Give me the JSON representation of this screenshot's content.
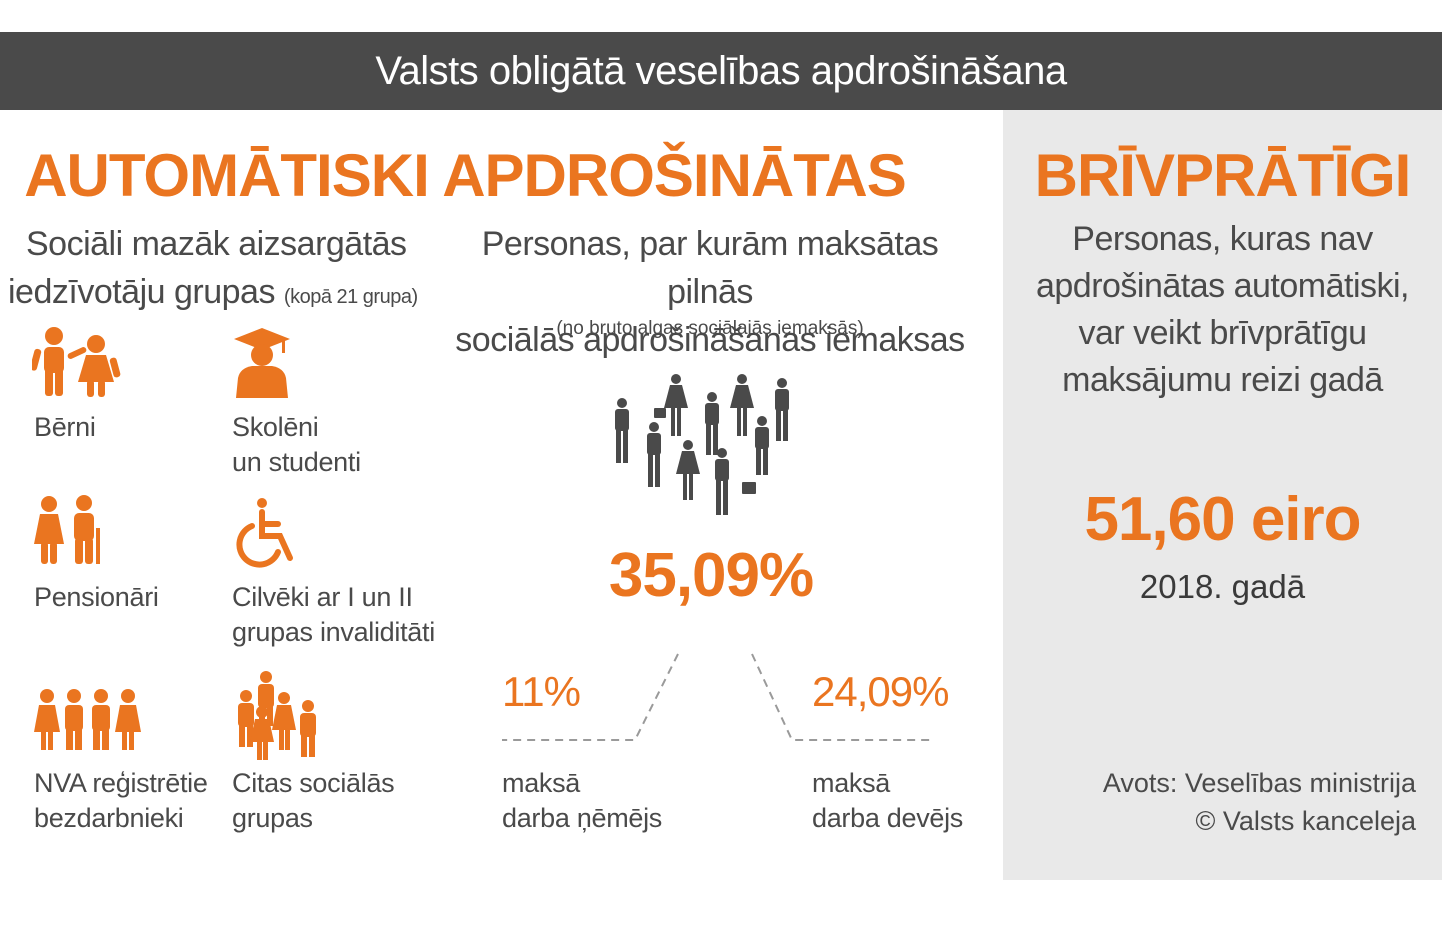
{
  "header": {
    "title": "Valsts obligātā veselības apdrošināšana"
  },
  "left": {
    "title": "AUTOMĀTISKI APDROŠINĀTAS",
    "groups_heading_line1": "Sociāli mazāk aizsargātās",
    "groups_heading_line2": "iedzīvotāju grupas",
    "groups_heading_note": "(kopā 21 grupa)",
    "groups": [
      {
        "icon": "children-icon",
        "line1": "Bērni",
        "line2": ""
      },
      {
        "icon": "graduate-icon",
        "line1": "Skolēni",
        "line2": "un studenti"
      },
      {
        "icon": "pensioners-icon",
        "line1": "Pensionāri",
        "line2": ""
      },
      {
        "icon": "wheelchair-icon",
        "line1": "Cilvēki ar I un II",
        "line2": "grupas invaliditāti"
      },
      {
        "icon": "unemployed-icon",
        "line1": "NVA reģistrētie",
        "line2": "bezdarbnieki"
      },
      {
        "icon": "social-groups-icon",
        "line1": "Citas sociālās",
        "line2": "grupas"
      }
    ],
    "persons_heading_line1": "Personas, par kurām maksātas pilnās",
    "persons_heading_line2": "sociālās apdrošināšanas iemaksas",
    "persons_note": "(no bruto algas sociālajās iemaksās)",
    "total_pct": "35,09%",
    "employee": {
      "pct": "11%",
      "line1": "maksā",
      "line2": "darba ņēmējs"
    },
    "employer": {
      "pct": "24,09%",
      "line1": "maksā",
      "line2": "darba devējs"
    }
  },
  "right": {
    "title": "BRĪVPRĀTĪGI",
    "text_lines": [
      "Personas, kuras nav",
      "apdrošinātas automātiski,",
      "var veikt brīvprātīgu",
      "maksājumu reizi gadā"
    ],
    "amount": "51,60 eiro",
    "year": "2018. gadā",
    "source_line1": "Avots: Veselības ministrija",
    "source_line2": "© Valsts kanceleja"
  },
  "colors": {
    "accent": "#ea7520",
    "header_bg": "#4a4a4a",
    "panel_bg": "#e9e9e9",
    "crowd": "#4a4a4a"
  }
}
